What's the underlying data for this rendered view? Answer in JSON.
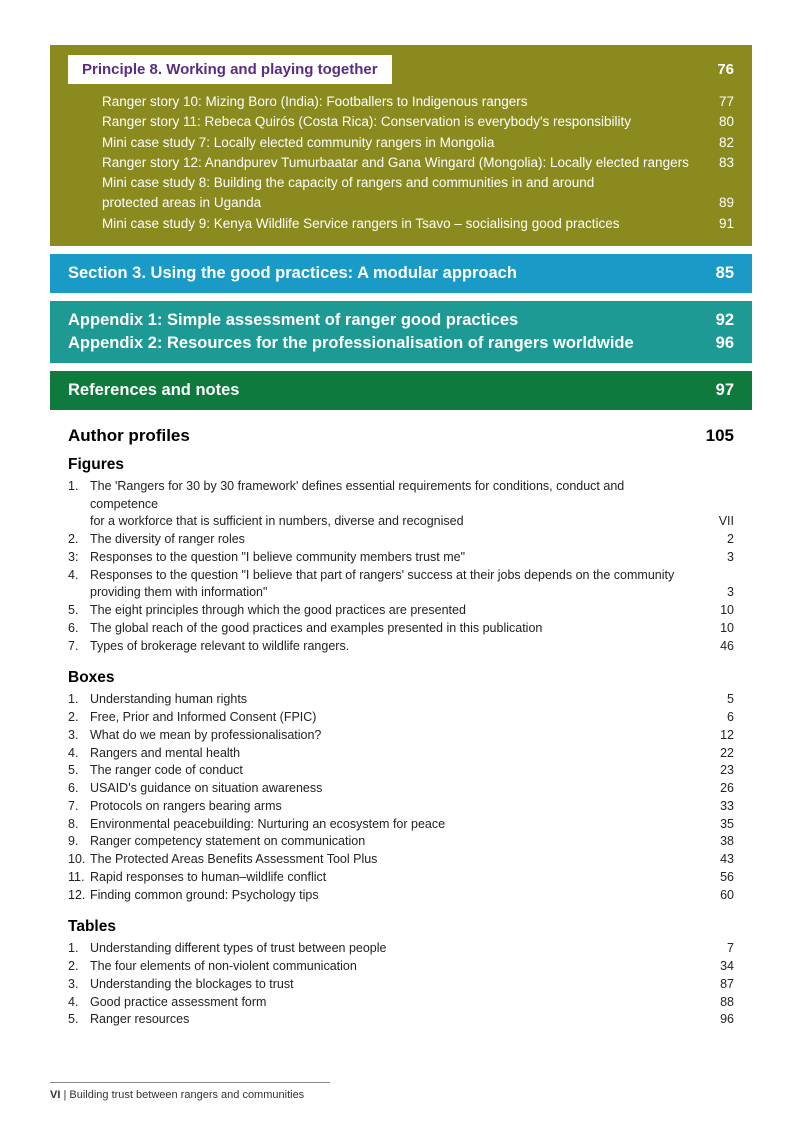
{
  "principle": {
    "label": "Principle 8. Working and playing together",
    "page": "76",
    "items": [
      {
        "text": "Ranger story 10: Mizing Boro (India): Footballers to Indigenous rangers",
        "page": "77"
      },
      {
        "text": "Ranger story 11: Rebeca Quirós (Costa Rica): Conservation is everybody's responsibility",
        "page": "80"
      },
      {
        "text": "Mini case study 7: Locally elected community rangers in Mongolia",
        "page": "82"
      },
      {
        "text": "Ranger story 12: Anandpurev Tumurbaatar and Gana Wingard (Mongolia): Locally elected rangers",
        "page": "83"
      },
      {
        "text": "Mini case study 8: Building the capacity of rangers and communities in and around",
        "page": ""
      },
      {
        "text": "protected areas in Uganda",
        "page": "89"
      },
      {
        "text": "Mini case study 9: Kenya Wildlife Service rangers in Tsavo – socialising good practices",
        "page": "91"
      }
    ]
  },
  "section3": {
    "title": "Section 3. Using the good practices: A modular approach",
    "page": "85"
  },
  "appendix": [
    {
      "title": "Appendix 1: Simple assessment of ranger good practices",
      "page": "92"
    },
    {
      "title": "Appendix 2: Resources for the professionalisation of rangers worldwide",
      "page": "96"
    }
  ],
  "references": {
    "title": "References and notes",
    "page": "97"
  },
  "author": {
    "title": "Author profiles",
    "page": "105"
  },
  "figures": {
    "heading": "Figures",
    "items": [
      {
        "n": "1.",
        "text": "The 'Rangers for 30 by 30 framework' defines essential requirements for conditions, conduct and competence",
        "page": ""
      },
      {
        "n": "",
        "text": "for a workforce that is sufficient in numbers, diverse and recognised",
        "page": "VII"
      },
      {
        "n": "2.",
        "text": "The diversity of ranger roles",
        "page": "2"
      },
      {
        "n": "3:",
        "text": "Responses to the question \"I believe community members trust me\"",
        "page": "3"
      },
      {
        "n": "4.",
        "text": "Responses to the question \"I believe that part of rangers' success at their jobs depends on the community",
        "page": ""
      },
      {
        "n": "",
        "text": "providing them with information\"",
        "page": "3"
      },
      {
        "n": "5.",
        "text": "The eight principles through which the good practices are presented",
        "page": "10"
      },
      {
        "n": "6.",
        "text": "The global reach of the good practices and examples presented in this publication",
        "page": "10"
      },
      {
        "n": "7.",
        "text": "Types of brokerage relevant to wildlife rangers.",
        "page": "46"
      }
    ]
  },
  "boxes": {
    "heading": "Boxes",
    "items": [
      {
        "n": "1.",
        "text": "Understanding human rights",
        "page": "5"
      },
      {
        "n": "2.",
        "text": "Free, Prior and Informed Consent (FPIC)",
        "page": "6"
      },
      {
        "n": "3.",
        "text": "What do we mean by professionalisation?",
        "page": "12"
      },
      {
        "n": "4.",
        "text": "Rangers and mental health",
        "page": "22"
      },
      {
        "n": "5.",
        "text": "The ranger code of conduct",
        "page": "23"
      },
      {
        "n": "6.",
        "text": "USAID's guidance on situation awareness",
        "page": "26"
      },
      {
        "n": "7.",
        "text": "Protocols on rangers bearing arms",
        "page": "33"
      },
      {
        "n": "8.",
        "text": "Environmental peacebuilding: Nurturing an ecosystem for peace",
        "page": "35"
      },
      {
        "n": "9.",
        "text": "Ranger competency statement on communication",
        "page": "38"
      },
      {
        "n": "10.",
        "text": "The Protected Areas Benefits Assessment Tool Plus",
        "page": "43"
      },
      {
        "n": "11.",
        "text": "Rapid responses to human–wildlife conflict",
        "page": "56"
      },
      {
        "n": "12.",
        "text": "Finding common ground: Psychology tips",
        "page": "60"
      }
    ]
  },
  "tables": {
    "heading": "Tables",
    "items": [
      {
        "n": "1.",
        "text": "Understanding different types of trust between people",
        "page": "7"
      },
      {
        "n": "2.",
        "text": "The four elements of non-violent communication",
        "page": "34"
      },
      {
        "n": "3.",
        "text": "Understanding the blockages to trust",
        "page": "87"
      },
      {
        "n": "4.",
        "text": "Good practice assessment form",
        "page": "88"
      },
      {
        "n": "5.",
        "text": "Ranger resources",
        "page": "96"
      }
    ]
  },
  "footer": {
    "pagenum": "VI",
    "sep": " | ",
    "title": "Building trust between rangers and communities"
  },
  "colors": {
    "olive": "#8a8a1f",
    "purple": "#5a2d82",
    "blue": "#1a9bc7",
    "teal": "#1d9a93",
    "green": "#0f7a3e"
  }
}
